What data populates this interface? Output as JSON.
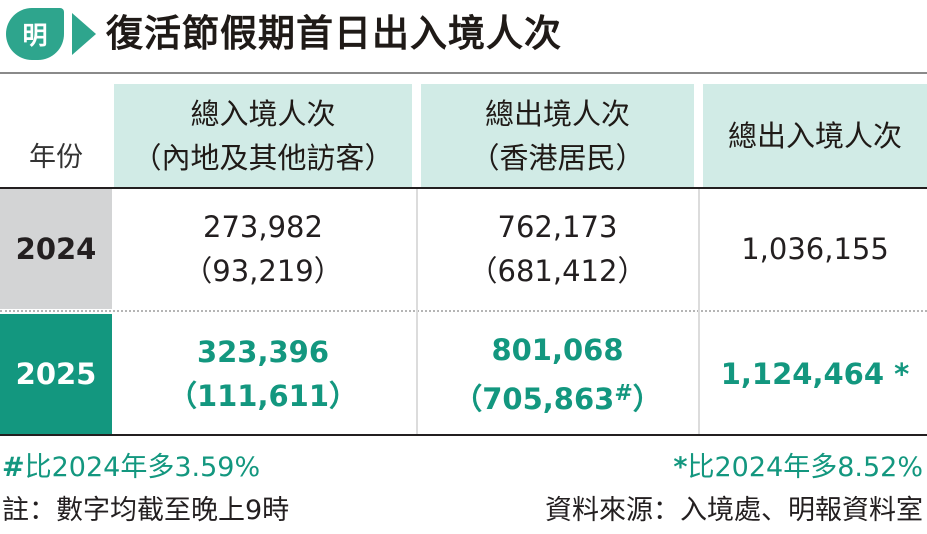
{
  "header": {
    "logo_text": "明",
    "title": "復活節假期首日出入境人次",
    "accent_color": "#2ea58d"
  },
  "table": {
    "headers": {
      "year": "年份",
      "col1_line1": "總入境人次",
      "col1_line2": "（內地及其他訪客）",
      "col2_line1": "總出境人次",
      "col2_line2": "（香港居民）",
      "col3": "總出入境人次"
    },
    "rows": [
      {
        "year": "2024",
        "col1_main": "273,982",
        "col1_sub": "（93,219）",
        "col2_main": "762,173",
        "col2_sub": "（681,412）",
        "col3": "1,036,155"
      },
      {
        "year": "2025",
        "col1_main": "323,396",
        "col1_sub": "（111,611）",
        "col2_main": "801,068",
        "col2_sub_pre": "（705,863",
        "col2_sub_mark": "#",
        "col2_sub_post": "）",
        "col3_value": "1,124,464",
        "col3_mark": "*"
      }
    ],
    "colors": {
      "highlight": "#13977f",
      "header_bg": "#d1ebe6",
      "row2024_bg": "#d3d4d5"
    }
  },
  "footer": {
    "left_mark": "#",
    "left_text": "比2024年多3.59%",
    "right_mark": "*",
    "right_text": "比2024年多8.52%",
    "note": "註：數字均截至晚上9時",
    "source": "資料來源：入境處、明報資料室"
  }
}
